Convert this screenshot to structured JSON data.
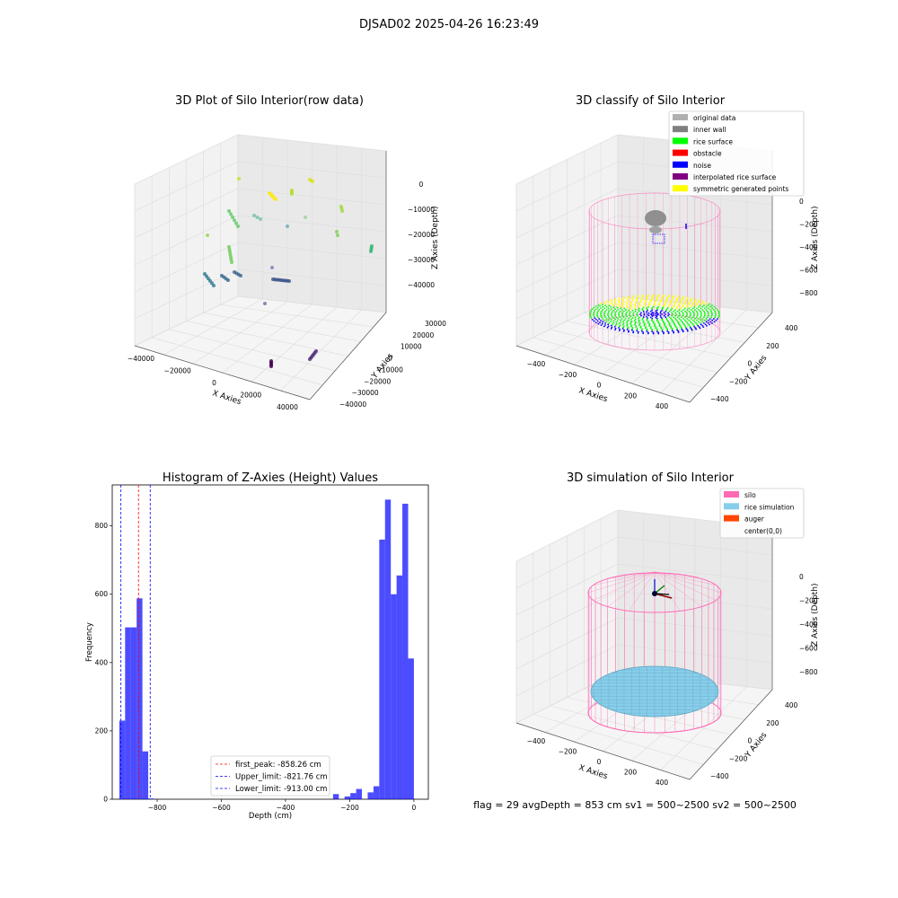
{
  "figure": {
    "suptitle": "DJSAD02 2025-04-26 16:23:49",
    "footer": "flag = 29   avgDepth = 853 cm   sv1 = 500~2500   sv2 = 500~2500"
  },
  "colors": {
    "silo": "#ff69b4",
    "rice_simulation": "#87ceeb",
    "auger": "#ff4500",
    "original": "#b0b0b0",
    "inner_wall": "#808080",
    "rice_surface": "#00ff00",
    "obstacle": "#ff0000",
    "noise": "#0000ff",
    "interpolated": "#800080",
    "symmetric": "#ffff00",
    "hist_bar": "#0000ff"
  },
  "chart_data": [
    {
      "type": "scatter",
      "projection": "3d",
      "title": "3D Plot of Silo Interior(row data)",
      "xlabel": "X Axies",
      "ylabel": "Y Axies",
      "zlabel": "Z Axies (Depth)",
      "xticks": [
        "−40000",
        "−20000",
        "0",
        "20000",
        "40000"
      ],
      "yticks": [
        "−40000",
        "−30000",
        "−20000",
        "−10000",
        "0",
        "10000",
        "20000",
        "30000"
      ],
      "zticks": [
        "−40000",
        "−30000",
        "−20000",
        "−10000",
        "0"
      ],
      "colormap": "viridis by depth"
    },
    {
      "type": "scatter",
      "projection": "3d",
      "title": "3D classify of Silo Interior",
      "xlabel": "X Axies",
      "ylabel": "Y Axies",
      "zlabel": "Z Axies (Depth)",
      "xticks": [
        "−400",
        "−200",
        "0",
        "200",
        "400"
      ],
      "yticks": [
        "−400",
        "−200",
        "0",
        "200",
        "400"
      ],
      "zticks": [
        "−800",
        "−600",
        "−400",
        "−200",
        "0"
      ],
      "legend_position": "upper-right",
      "legend": [
        "original data",
        "inner wall",
        "rice surface",
        "obstacle",
        "noise",
        "interpolated rice surface",
        "symmetric generated points"
      ]
    },
    {
      "type": "bar",
      "title": "Histogram of Z-Axies (Height) Values",
      "xlabel": "Depth (cm)",
      "ylabel": "Frequency",
      "xlim": [
        -940,
        45
      ],
      "ylim": [
        0,
        920
      ],
      "xticks": [
        "−800",
        "−600",
        "−400",
        "−200",
        "0"
      ],
      "yticks": [
        "0",
        "200",
        "400",
        "600",
        "800"
      ],
      "bin_width": 18,
      "bins": [
        {
          "x0": -918,
          "count": 230
        },
        {
          "x0": -900,
          "count": 503
        },
        {
          "x0": -882,
          "count": 503
        },
        {
          "x0": -864,
          "count": 588
        },
        {
          "x0": -846,
          "count": 140
        },
        {
          "x0": -828,
          "count": 2
        },
        {
          "x0": -252,
          "count": 15
        },
        {
          "x0": -216,
          "count": 8
        },
        {
          "x0": -198,
          "count": 18
        },
        {
          "x0": -180,
          "count": 30
        },
        {
          "x0": -144,
          "count": 20
        },
        {
          "x0": -126,
          "count": 38
        },
        {
          "x0": -108,
          "count": 760
        },
        {
          "x0": -90,
          "count": 877
        },
        {
          "x0": -72,
          "count": 600
        },
        {
          "x0": -54,
          "count": 655
        },
        {
          "x0": -36,
          "count": 865
        },
        {
          "x0": -18,
          "count": 412
        }
      ],
      "lines": [
        {
          "label": "first_peak: -858.26 cm",
          "x": -858.26,
          "color": "#ff0000"
        },
        {
          "label": "Upper_limit: -821.76 cm",
          "x": -821.76,
          "color": "#0000ff"
        },
        {
          "label": "Lower_limit: -913.00 cm",
          "x": -913.0,
          "color": "#0000ff"
        }
      ],
      "legend_position": "lower-center"
    },
    {
      "type": "scatter",
      "projection": "3d",
      "title": "3D simulation of Silo Interior",
      "xlabel": "X Axies",
      "ylabel": "Y Axies",
      "zlabel": "Z Axies (Depth)",
      "xticks": [
        "−400",
        "−200",
        "0",
        "200",
        "400"
      ],
      "yticks": [
        "−400",
        "−200",
        "0",
        "200",
        "400"
      ],
      "zticks": [
        "−800",
        "−600",
        "−400",
        "−200",
        "0"
      ],
      "legend_position": "upper-right",
      "legend": [
        "silo",
        "rice simulation",
        "auger",
        "center(0,0)"
      ]
    }
  ]
}
